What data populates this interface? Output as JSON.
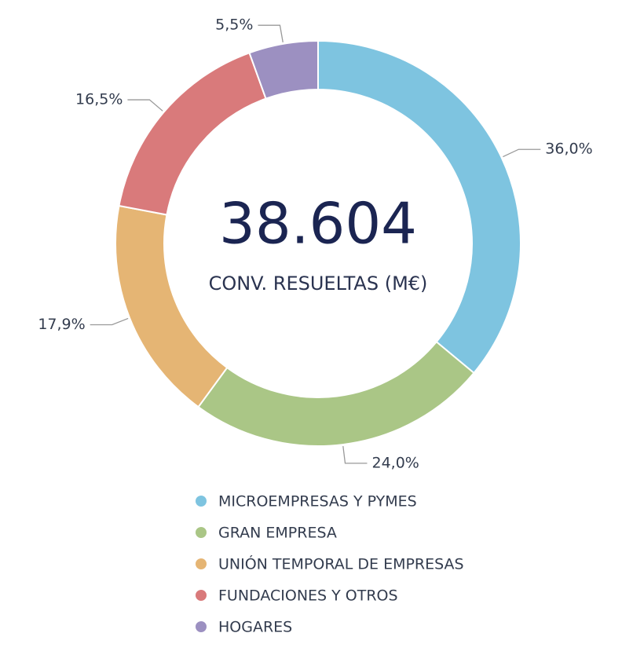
{
  "chart_data": {
    "type": "donut",
    "center_value": "38.604",
    "center_label": "CONV. RESUELTAS (M€)",
    "categories": [
      "MICROEMPRESAS Y PYMES",
      "GRAN EMPRESA",
      "UNIÓN TEMPORAL DE EMPRESAS",
      "FUNDACIONES Y OTROS",
      "HOGARES"
    ],
    "values": [
      36.0,
      24.0,
      17.9,
      16.5,
      5.5
    ],
    "value_labels": [
      "36,0%",
      "24,0%",
      "17,9%",
      "16,5%",
      "5,5%"
    ],
    "colors": [
      "#7ec4e0",
      "#aac686",
      "#e5b574",
      "#d97a7b",
      "#9c90c1"
    ]
  }
}
